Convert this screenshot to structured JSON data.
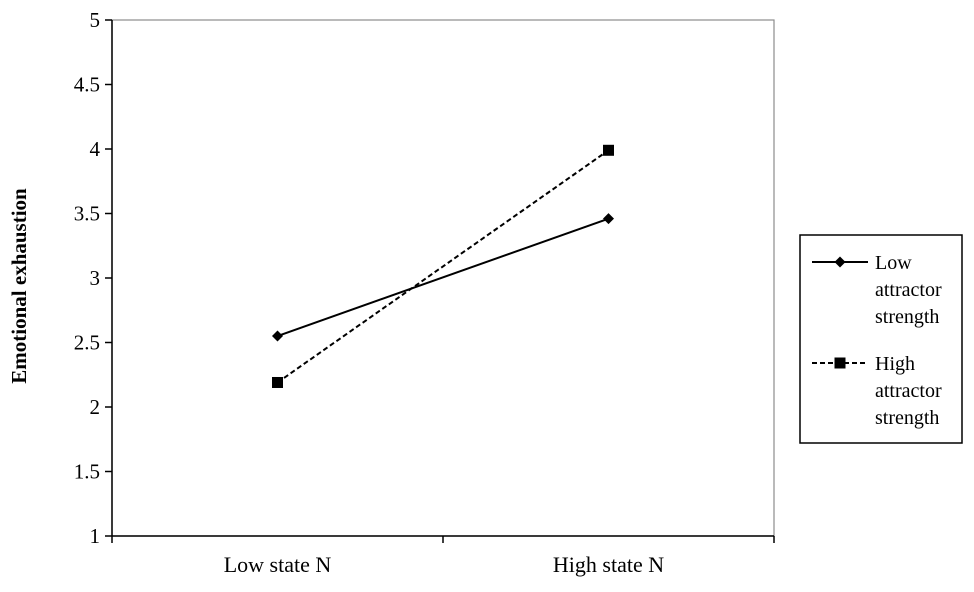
{
  "chart_data": {
    "type": "line",
    "categories": [
      "Low state N",
      "High state N"
    ],
    "ylabel": "Emotional exhaustion",
    "ylim": [
      1,
      5
    ],
    "yticks": [
      1,
      1.5,
      2,
      2.5,
      3,
      3.5,
      4,
      4.5,
      5
    ],
    "yticks_text": [
      "1",
      "1.5",
      "2",
      "2.5",
      "3",
      "3.5",
      "4",
      "4.5",
      "5"
    ],
    "grid": false,
    "legend_position": "right",
    "series": [
      {
        "name": "Low attractor strength",
        "name_lines": [
          "Low",
          "attractor",
          "strength"
        ],
        "values": [
          2.55,
          3.46
        ],
        "line_style": "solid",
        "marker": "diamond",
        "color": "#000000"
      },
      {
        "name": "High attractor strength",
        "name_lines": [
          "High",
          "attractor",
          "strength"
        ],
        "values": [
          2.19,
          3.99
        ],
        "line_style": "dashed",
        "marker": "square",
        "color": "#000000"
      }
    ]
  }
}
